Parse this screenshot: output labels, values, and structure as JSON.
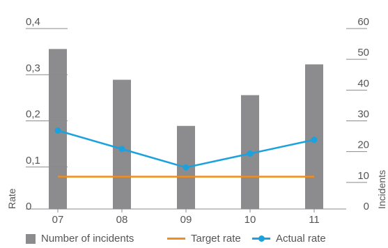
{
  "chart_data": {
    "type": "bar",
    "categories": [
      "07",
      "08",
      "09",
      "10",
      "11"
    ],
    "series": [
      {
        "name": "Number of incidents",
        "type": "bar",
        "axis": "right",
        "values": [
          52,
          42,
          27,
          37,
          47
        ]
      },
      {
        "name": "Target rate",
        "type": "line",
        "axis": "left",
        "values": [
          0.07,
          0.07,
          0.07,
          0.07,
          0.07
        ]
      },
      {
        "name": "Actual rate",
        "type": "line",
        "axis": "left",
        "values": [
          0.17,
          0.13,
          0.09,
          0.12,
          0.15
        ]
      }
    ],
    "ylabel": "Rate",
    "y2label": "Incidents",
    "ylim": [
      0,
      0.4
    ],
    "y2lim": [
      0,
      60
    ],
    "yticks": [
      "0",
      "0,1",
      "0,2",
      "0,3",
      "0,4"
    ],
    "y2ticks": [
      "0",
      "10",
      "20",
      "30",
      "40",
      "50",
      "60"
    ],
    "grid": false,
    "legend_position": "bottom",
    "colors": {
      "bar": "#8c8b8d",
      "target": "#f28c1c",
      "actual": "#1ba1dd",
      "axis": "#8a8a8a",
      "text": "#555555"
    }
  }
}
